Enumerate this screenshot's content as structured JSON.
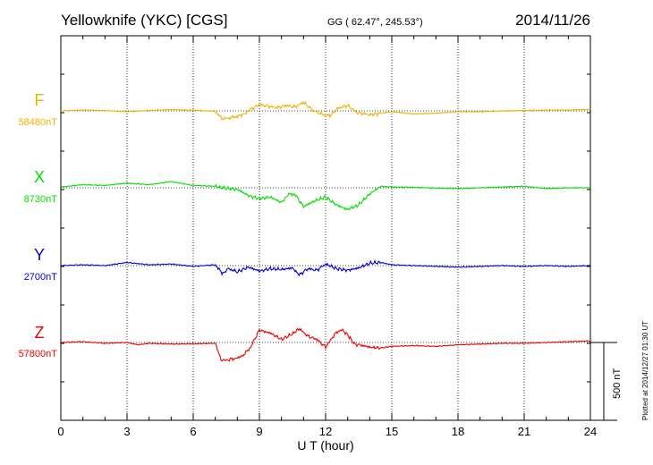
{
  "header": {
    "station": "Yellowknife (YKC)  [CGS]",
    "coords": "GG ( 62.47°, 245.53°)",
    "date": "2014/11/26"
  },
  "footnote": "Plotted at 2014/12/27 01:30 UT",
  "chart_data": {
    "type": "line",
    "xlabel": "U T (hour)",
    "xlim": [
      0,
      24
    ],
    "xticks": [
      "0",
      "3",
      "6",
      "9",
      "12",
      "15",
      "18",
      "21",
      "24"
    ],
    "grid": true,
    "scale_bar": {
      "label": "500 nT",
      "nT": 500
    },
    "series": [
      {
        "name": "F",
        "baseline_label": "58480nT",
        "color": "#f0b000",
        "x": [
          0,
          1,
          2,
          3,
          4,
          5,
          6,
          7,
          7.3,
          7.7,
          8,
          8.3,
          8.6,
          9,
          9.4,
          9.8,
          10.2,
          10.6,
          11,
          11.4,
          11.8,
          12.2,
          12.6,
          13,
          13.4,
          14,
          14.5,
          15,
          16,
          17,
          18,
          19,
          20,
          21,
          22,
          23,
          24
        ],
        "y": [
          0,
          5,
          2,
          -5,
          3,
          8,
          5,
          -3,
          -50,
          -45,
          -35,
          -20,
          10,
          40,
          30,
          20,
          35,
          25,
          55,
          5,
          -20,
          -30,
          20,
          35,
          -10,
          -25,
          -15,
          -5,
          -20,
          -15,
          -5,
          -5,
          0,
          2,
          5,
          5,
          10
        ]
      },
      {
        "name": "X",
        "baseline_label": "8730nT",
        "color": "#00dd00",
        "x": [
          0,
          1,
          2,
          3,
          4,
          5,
          6,
          7,
          7.5,
          8,
          8.5,
          9,
          9.5,
          10,
          10.3,
          10.6,
          11,
          11.5,
          12,
          12.5,
          13,
          13.5,
          14,
          14.5,
          15,
          16,
          17,
          18,
          19,
          20,
          21,
          22,
          23,
          24
        ],
        "y": [
          5,
          20,
          15,
          30,
          20,
          40,
          15,
          10,
          -5,
          -10,
          -50,
          -70,
          -60,
          -95,
          -45,
          -40,
          -120,
          -85,
          -60,
          -110,
          -140,
          -110,
          -40,
          10,
          5,
          3,
          -2,
          -5,
          0,
          5,
          10,
          -5,
          0,
          0
        ]
      },
      {
        "name": "Y",
        "baseline_label": "2700nT",
        "color": "#0000dd",
        "x": [
          0,
          1,
          2,
          3,
          4,
          5,
          6,
          7,
          7.3,
          7.6,
          8,
          8.5,
          9,
          9.5,
          10,
          10.5,
          10.8,
          11.2,
          11.6,
          12,
          12.5,
          13,
          13.5,
          14,
          14.5,
          15,
          16,
          17,
          18,
          19,
          20,
          21,
          22,
          23,
          24
        ],
        "y": [
          0,
          5,
          0,
          20,
          5,
          10,
          -5,
          5,
          -50,
          -20,
          -40,
          -10,
          -35,
          -20,
          -25,
          -15,
          -60,
          -20,
          -30,
          10,
          -20,
          -30,
          -15,
          15,
          20,
          5,
          0,
          -5,
          -10,
          -5,
          0,
          -5,
          0,
          -5,
          0
        ]
      },
      {
        "name": "Z",
        "baseline_label": "57800nT",
        "color": "#ee0000",
        "x": [
          0,
          1,
          2,
          3,
          3.5,
          4,
          5,
          6,
          7,
          7.3,
          7.6,
          8,
          8.3,
          8.6,
          9,
          9.5,
          10,
          10.5,
          10.8,
          11.2,
          11.6,
          12,
          12.4,
          12.7,
          13,
          13.3,
          13.7,
          14,
          14.5,
          15,
          16,
          17,
          18,
          19,
          20,
          21,
          22,
          23,
          24
        ],
        "y": [
          0,
          5,
          -5,
          0,
          -15,
          -5,
          -10,
          -8,
          -5,
          -120,
          -110,
          -100,
          -80,
          -30,
          80,
          60,
          20,
          55,
          90,
          40,
          20,
          -30,
          50,
          85,
          50,
          -10,
          -20,
          -30,
          -35,
          -25,
          -20,
          -25,
          -15,
          -10,
          -5,
          -5,
          0,
          5,
          10
        ]
      }
    ]
  }
}
